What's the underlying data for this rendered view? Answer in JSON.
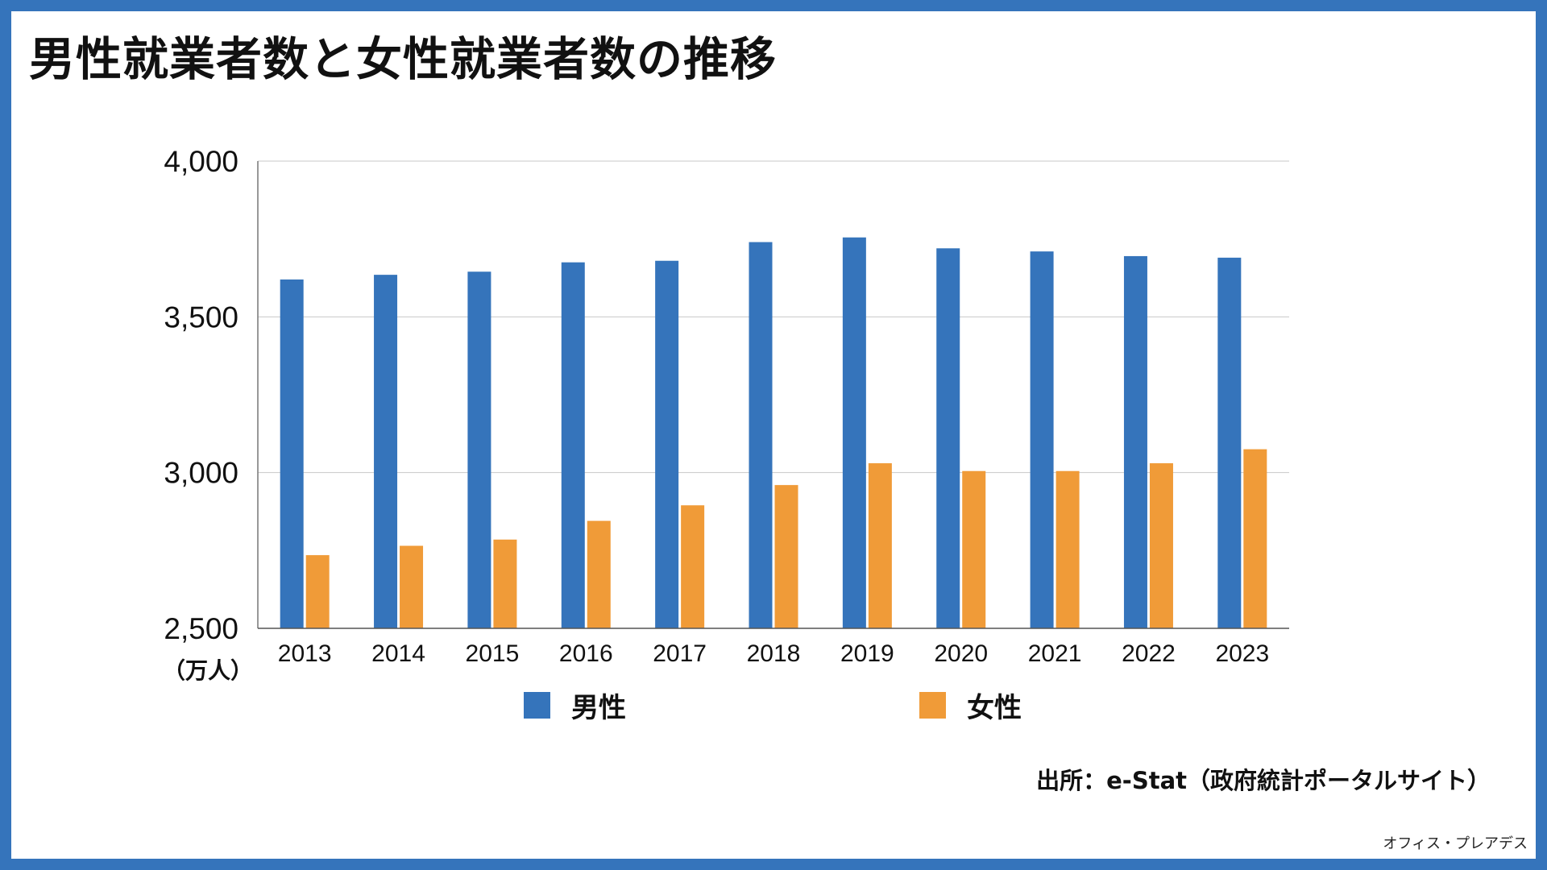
{
  "title": "男性就業者数と女性就業者数の推移",
  "source": "出所：e-Stat（政府統計ポータルサイト）",
  "credit": "オフィス・プレアデス",
  "colors": {
    "border": "#3574bb",
    "male": "#3574bb",
    "female": "#f09b38"
  },
  "chart_data": {
    "type": "bar",
    "title": "男性就業者数と女性就業者数の推移",
    "categories": [
      "2013",
      "2014",
      "2015",
      "2016",
      "2017",
      "2018",
      "2019",
      "2020",
      "2021",
      "2022",
      "2023"
    ],
    "series": [
      {
        "name": "男性",
        "color": "#3574bb",
        "values": [
          3620,
          3635,
          3645,
          3675,
          3680,
          3740,
          3755,
          3720,
          3710,
          3695,
          3690
        ]
      },
      {
        "name": "女性",
        "color": "#f09b38",
        "values": [
          2735,
          2765,
          2785,
          2845,
          2895,
          2960,
          3030,
          3005,
          3005,
          3030,
          3075
        ]
      }
    ],
    "yticks": [
      "4,000",
      "3,500",
      "3,000",
      "2,500"
    ],
    "ytick_values": [
      4000,
      3500,
      3000,
      2500
    ],
    "ylim": [
      2500,
      4000
    ],
    "yunit": "（万人）",
    "xlabel": "",
    "ylabel": "",
    "grid": true,
    "legend": "bottom"
  }
}
